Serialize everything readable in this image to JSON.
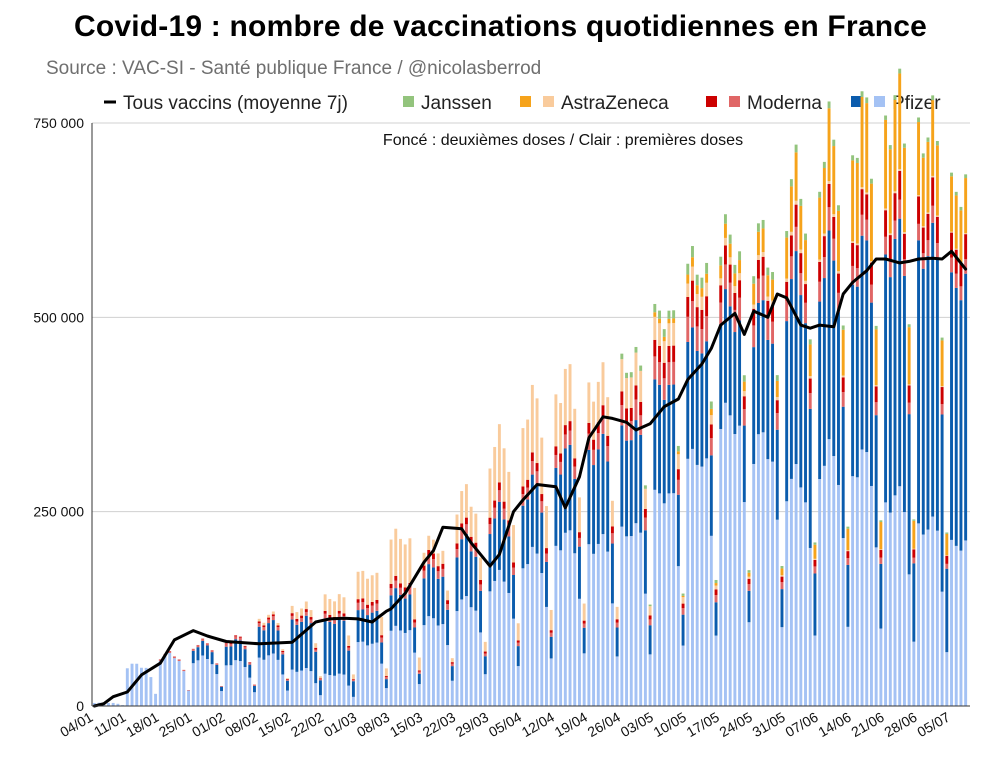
{
  "title": "Covid-19 : nombre de vaccinations quotidiennes en France",
  "subtitle": "Source : VAC-SI - Santé publique France / @nicolasberrod",
  "chart_data": {
    "type": "bar",
    "stacked": true,
    "title": "Covid-19 : nombre de vaccinations quotidiennes en France",
    "subtitle": "Source : VAC-SI - Santé publique France / @nicolasberrod",
    "annotation": "Foncé : deuxièmes doses / Clair : premières doses",
    "ylim": [
      0,
      750000
    ],
    "ytick_values": [
      0,
      250000,
      500000,
      750000
    ],
    "ytick_labels": [
      "0",
      "250 000",
      "500 000",
      "750 000"
    ],
    "xtick_labels": [
      "04/01",
      "11/01",
      "18/01",
      "25/01",
      "01/02",
      "08/02",
      "15/02",
      "22/02",
      "01/03",
      "08/03",
      "15/03",
      "22/03",
      "29/03",
      "05/04",
      "12/04",
      "19/04",
      "26/04",
      "03/05",
      "10/05",
      "17/05",
      "24/05",
      "31/05",
      "07/06",
      "14/06",
      "21/06",
      "28/06",
      "05/07"
    ],
    "days_per_tick": 7,
    "n_days": 186,
    "legend": [
      {
        "key": "avg",
        "label": "Tous vaccins (moyenne 7j)",
        "type": "line",
        "color": "#000000"
      },
      {
        "key": "janssen",
        "label": "Janssen",
        "colors": [
          "#93c47d"
        ]
      },
      {
        "key": "astra",
        "label": "AstraZeneca",
        "colors": [
          "#f6a31b",
          "#f9cb9c"
        ]
      },
      {
        "key": "moderna",
        "label": "Moderna",
        "colors": [
          "#cc0000",
          "#e06666"
        ]
      },
      {
        "key": "pfizer",
        "label": "Pfizer",
        "colors": [
          "#0b5cad",
          "#a4c2f4"
        ]
      }
    ],
    "series": [
      {
        "name": "Pfizer première dose",
        "color": "#a4c2f4",
        "weekly_avg": [
          3500,
          45000,
          55000,
          52000,
          48000,
          55000,
          40000,
          35000,
          70000,
          85000,
          95000,
          115000,
          140000,
          165000,
          185000,
          180000,
          195000,
          235000,
          275000,
          320000,
          290000,
          250000,
          275000,
          270000,
          230000,
          200000,
          180000
        ]
      },
      {
        "name": "Pfizer deuxième dose",
        "color": "#0b5cad",
        "weekly_avg": [
          0,
          0,
          0,
          15000,
          22000,
          35000,
          55000,
          60000,
          35000,
          40000,
          55000,
          65000,
          70000,
          75000,
          90000,
          105000,
          110000,
          120000,
          130000,
          120000,
          140000,
          220000,
          215000,
          225000,
          280000,
          310000,
          290000
        ]
      },
      {
        "name": "Moderna première dose",
        "color": "#e06666",
        "weekly_avg": [
          0,
          0,
          2000,
          2500,
          3000,
          4000,
          4000,
          5000,
          8000,
          8000,
          9000,
          10000,
          12000,
          14000,
          15000,
          18000,
          22000,
          25000,
          28000,
          26000,
          26000,
          25000,
          24000,
          22000,
          20000,
          18000,
          16000
        ]
      },
      {
        "name": "Moderna deuxième dose",
        "color": "#cc0000",
        "weekly_avg": [
          0,
          0,
          0,
          0,
          1000,
          2000,
          3000,
          3000,
          4000,
          5000,
          6000,
          7000,
          8000,
          9000,
          10000,
          12000,
          15000,
          18000,
          22000,
          20000,
          20000,
          23000,
          24000,
          27000,
          30000,
          30000,
          27000
        ]
      },
      {
        "name": "AstraZeneca première dose",
        "color": "#f9cb9c",
        "weekly_avg": [
          0,
          0,
          0,
          0,
          0,
          3000,
          8000,
          18000,
          30000,
          50000,
          15000,
          35000,
          60000,
          70000,
          60000,
          45000,
          35000,
          25000,
          15000,
          8000,
          5000,
          4000,
          3000,
          2000,
          2000,
          1500,
          1000
        ]
      },
      {
        "name": "AstraZeneca deuxième dose",
        "color": "#f6a31b",
        "weekly_avg": [
          0,
          0,
          0,
          0,
          0,
          0,
          0,
          0,
          0,
          0,
          0,
          0,
          0,
          0,
          0,
          0,
          0,
          5000,
          10000,
          15000,
          25000,
          50000,
          75000,
          95000,
          100000,
          80000,
          60000
        ]
      },
      {
        "name": "Janssen",
        "color": "#93c47d",
        "weekly_avg": [
          0,
          0,
          0,
          0,
          0,
          0,
          0,
          0,
          0,
          0,
          0,
          0,
          0,
          0,
          0,
          0,
          6000,
          9000,
          12000,
          10000,
          9000,
          8000,
          7000,
          6000,
          5000,
          5000,
          4000
        ]
      },
      {
        "name": "Tous vaccins (moyenne 7j)",
        "color": "#000000",
        "type": "line",
        "x_day": [
          0,
          2,
          4,
          7,
          10,
          14,
          17,
          21,
          24,
          28,
          35,
          42,
          47,
          50,
          53,
          56,
          59,
          62,
          63,
          66,
          70,
          72,
          74,
          78,
          80,
          84,
          86,
          89,
          91,
          94,
          98,
          100,
          103,
          105,
          108,
          110,
          113,
          115,
          118,
          121,
          124,
          126,
          129,
          131,
          133,
          136,
          138,
          140,
          143,
          145,
          147,
          150,
          152,
          154,
          157,
          159,
          161,
          164,
          166,
          168,
          171,
          173,
          175,
          178,
          180,
          182,
          185
        ],
        "values": [
          0,
          3000,
          12000,
          18000,
          40000,
          55000,
          85000,
          97000,
          90000,
          83000,
          80000,
          82000,
          108000,
          112000,
          113000,
          112000,
          108000,
          122000,
          125000,
          145000,
          185000,
          200000,
          230000,
          228000,
          210000,
          180000,
          195000,
          250000,
          265000,
          285000,
          282000,
          255000,
          295000,
          345000,
          372000,
          370000,
          365000,
          355000,
          363000,
          385000,
          395000,
          420000,
          440000,
          460000,
          490000,
          505000,
          478000,
          508000,
          500000,
          530000,
          525000,
          490000,
          486000,
          490000,
          488000,
          530000,
          545000,
          560000,
          575000,
          575000,
          570000,
          572000,
          575000,
          576000,
          575000,
          585000,
          562000
        ]
      }
    ]
  }
}
